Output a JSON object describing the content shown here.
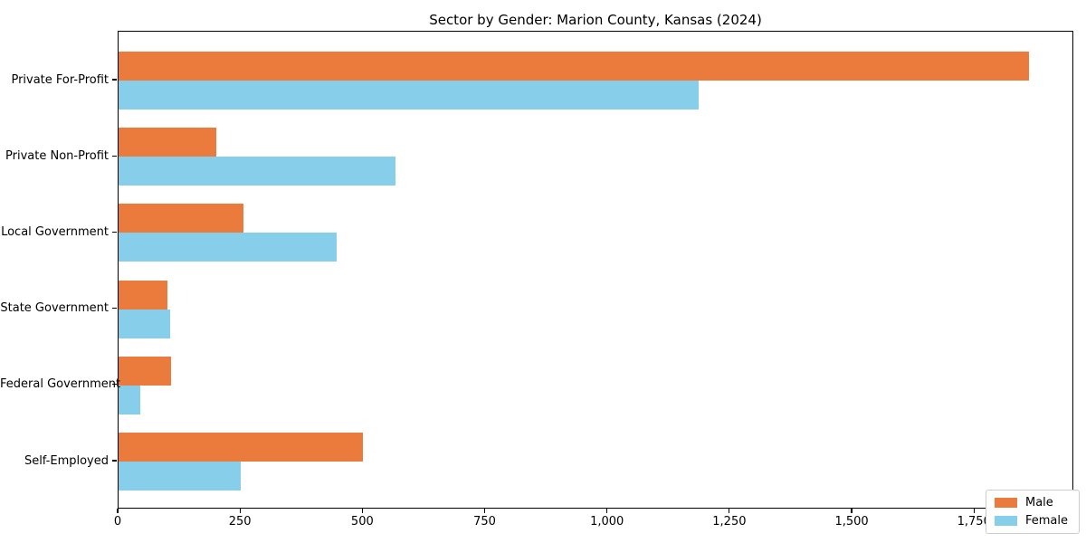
{
  "chart_data": {
    "type": "bar",
    "orientation": "horizontal",
    "title": "Sector by Gender: Marion County, Kansas (2024)",
    "categories": [
      "Private For-Profit",
      "Private Non-Profit",
      "Local Government",
      "State Government",
      "Federal Government",
      "Self-Employed"
    ],
    "series": [
      {
        "name": "Male",
        "color": "#EB7B3C",
        "values": [
          1860,
          200,
          255,
          100,
          107,
          500
        ]
      },
      {
        "name": "Female",
        "color": "#87CEEB",
        "values": [
          1185,
          565,
          445,
          105,
          45,
          250
        ]
      }
    ],
    "xlabel": "",
    "ylabel": "",
    "xlim": [
      0,
      1953
    ],
    "xticks": {
      "values": [
        0,
        250,
        500,
        750,
        1000,
        1250,
        1500,
        1750
      ],
      "labels": [
        "0",
        "250",
        "500",
        "750",
        "1,000",
        "1,250",
        "1,500",
        "1,750"
      ]
    },
    "grid": false,
    "legend": {
      "position": "lower right",
      "entries": [
        "Male",
        "Female"
      ]
    }
  }
}
